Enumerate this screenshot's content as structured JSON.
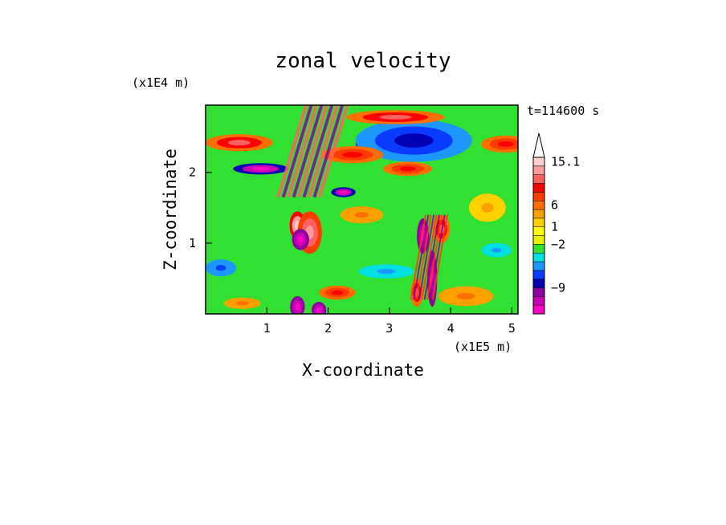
{
  "chart_data": {
    "type": "heatmap",
    "title": "zonal velocity",
    "xlabel": "X-coordinate",
    "ylabel": "Z-coordinate",
    "x_unit": "(x1E5 m)",
    "y_unit": "(x1E4 m)",
    "time_label": "t=114600 s",
    "xlim": [
      0,
      5.1
    ],
    "ylim": [
      0,
      2.95
    ],
    "x_ticks": [
      {
        "value": 1,
        "label": "1"
      },
      {
        "value": 2,
        "label": "2"
      },
      {
        "value": 3,
        "label": "3"
      },
      {
        "value": 4,
        "label": "4"
      },
      {
        "value": 5,
        "label": "5"
      }
    ],
    "y_ticks": [
      {
        "value": 1,
        "label": "1"
      },
      {
        "value": 2,
        "label": "2"
      }
    ],
    "colorbar": {
      "colors": [
        "#ff00c8",
        "#c800b4",
        "#8c00a0",
        "#0000b4",
        "#0a3cff",
        "#1e96ff",
        "#00e0e0",
        "#32e032",
        "#e6f000",
        "#ffff00",
        "#ffd000",
        "#ffa000",
        "#ff6e00",
        "#ff3c00",
        "#ff0000",
        "#ff6060",
        "#ff9a9a",
        "#ffd0d0"
      ],
      "labels": [
        {
          "text": "15.1",
          "level": 17
        },
        {
          "text": "6",
          "level": 12
        },
        {
          "text": "1",
          "level": 9.5
        },
        {
          "text": "−2",
          "level": 7.5
        },
        {
          "text": "−9",
          "level": 2.5
        }
      ],
      "extend_max": true
    },
    "features": [
      {
        "kind": "blob",
        "x": 3.15,
        "y": 2.4,
        "rx": 0.7,
        "ry": 0.18,
        "value": -10
      },
      {
        "kind": "blob",
        "x": 3.4,
        "y": 2.45,
        "rx": 0.95,
        "ry": 0.3,
        "value": -5
      },
      {
        "kind": "blob",
        "x": 3.1,
        "y": 2.78,
        "rx": 0.8,
        "ry": 0.1,
        "value": 7
      },
      {
        "kind": "blob",
        "x": 0.55,
        "y": 2.42,
        "rx": 0.55,
        "ry": 0.12,
        "value": 7
      },
      {
        "kind": "blob",
        "x": 4.9,
        "y": 2.4,
        "rx": 0.4,
        "ry": 0.12,
        "value": 6
      },
      {
        "kind": "blob",
        "x": 0.9,
        "y": 2.05,
        "rx": 0.45,
        "ry": 0.08,
        "value": -8
      },
      {
        "kind": "blob",
        "x": 2.25,
        "y": 1.72,
        "rx": 0.2,
        "ry": 0.07,
        "value": -8
      },
      {
        "kind": "blob",
        "x": 1.5,
        "y": 1.25,
        "rx": 0.13,
        "ry": 0.2,
        "value": 10
      },
      {
        "kind": "blob",
        "x": 1.7,
        "y": 1.15,
        "rx": 0.2,
        "ry": 0.3,
        "value": 8
      },
      {
        "kind": "blob",
        "x": 1.55,
        "y": 1.05,
        "rx": 0.14,
        "ry": 0.15,
        "value": -9
      },
      {
        "kind": "blob",
        "x": 1.5,
        "y": 0.1,
        "rx": 0.12,
        "ry": 0.15,
        "value": -9
      },
      {
        "kind": "blob",
        "x": 1.85,
        "y": 0.05,
        "rx": 0.12,
        "ry": 0.12,
        "value": -9
      },
      {
        "kind": "blob",
        "x": 3.55,
        "y": 1.1,
        "rx": 0.1,
        "ry": 0.25,
        "value": -9
      },
      {
        "kind": "blob",
        "x": 3.7,
        "y": 0.5,
        "rx": 0.08,
        "ry": 0.4,
        "value": -9
      },
      {
        "kind": "blob",
        "x": 3.85,
        "y": 1.2,
        "rx": 0.14,
        "ry": 0.2,
        "value": 7
      },
      {
        "kind": "blob",
        "x": 3.45,
        "y": 0.3,
        "rx": 0.1,
        "ry": 0.2,
        "value": 7
      },
      {
        "kind": "blob",
        "x": 2.4,
        "y": 2.25,
        "rx": 0.5,
        "ry": 0.12,
        "value": 6
      },
      {
        "kind": "blob",
        "x": 3.3,
        "y": 2.05,
        "rx": 0.4,
        "ry": 0.1,
        "value": 6
      },
      {
        "kind": "blob",
        "x": 0.25,
        "y": 0.65,
        "rx": 0.25,
        "ry": 0.12,
        "value": -4
      },
      {
        "kind": "blob",
        "x": 4.75,
        "y": 0.9,
        "rx": 0.25,
        "ry": 0.1,
        "value": -3
      },
      {
        "kind": "blob",
        "x": 2.95,
        "y": 0.6,
        "rx": 0.45,
        "ry": 0.1,
        "value": -3
      },
      {
        "kind": "blob",
        "x": 4.25,
        "y": 0.25,
        "rx": 0.45,
        "ry": 0.14,
        "value": 4
      },
      {
        "kind": "blob",
        "x": 0.6,
        "y": 0.15,
        "rx": 0.3,
        "ry": 0.08,
        "value": 4
      },
      {
        "kind": "blob",
        "x": 2.55,
        "y": 1.4,
        "rx": 0.35,
        "ry": 0.12,
        "value": 4
      },
      {
        "kind": "blob",
        "x": 4.6,
        "y": 1.5,
        "rx": 0.3,
        "ry": 0.2,
        "value": 3
      },
      {
        "kind": "blob",
        "x": 2.15,
        "y": 0.3,
        "rx": 0.3,
        "ry": 0.1,
        "value": 6
      },
      {
        "kind": "wave",
        "x": 1.75,
        "y": 2.3,
        "rx": 0.38,
        "ry": 0.65,
        "value": 7
      },
      {
        "kind": "wave",
        "x": 3.65,
        "y": 0.8,
        "rx": 0.2,
        "ry": 0.6,
        "value": 5
      }
    ]
  }
}
